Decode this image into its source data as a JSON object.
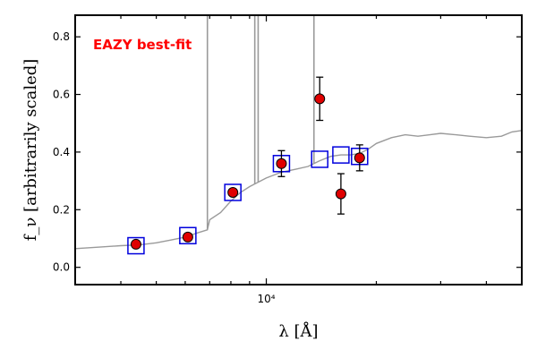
{
  "chart_data": {
    "type": "scatter",
    "annotation": "EAZY best-fit",
    "xlabel": "λ [Å]",
    "ylabel": "f_ν [arbitrarily scaled]",
    "xscale": "log",
    "xlim": [
      3000,
      50000
    ],
    "ylim": [
      -0.06,
      0.875
    ],
    "yticks": [
      "0.0",
      "0.2",
      "0.4",
      "0.6",
      "0.8"
    ],
    "ytick_values": [
      0.0,
      0.2,
      0.4,
      0.6,
      0.8
    ],
    "xtick_major": [
      {
        "value": 10000,
        "label": "10⁴"
      }
    ],
    "grid": false,
    "colors": {
      "observed": "#e00000",
      "model_photometry": "#0000dd",
      "sed": "#9a9a9a",
      "annotation": "#ff0000"
    },
    "observed_points": [
      {
        "x": 4400,
        "y": 0.08,
        "err": 0.0
      },
      {
        "x": 6100,
        "y": 0.105,
        "err": 0.0
      },
      {
        "x": 8100,
        "y": 0.26,
        "err": 0.0
      },
      {
        "x": 11000,
        "y": 0.36,
        "err": 0.045
      },
      {
        "x": 14000,
        "y": 0.585,
        "err": 0.075
      },
      {
        "x": 16000,
        "y": 0.255,
        "err": 0.07
      },
      {
        "x": 18000,
        "y": 0.38,
        "err": 0.045
      }
    ],
    "model_photometry": [
      {
        "x": 4400,
        "y": 0.075
      },
      {
        "x": 6100,
        "y": 0.11
      },
      {
        "x": 8100,
        "y": 0.26
      },
      {
        "x": 11000,
        "y": 0.36
      },
      {
        "x": 14000,
        "y": 0.375
      },
      {
        "x": 16000,
        "y": 0.39
      },
      {
        "x": 18000,
        "y": 0.385
      }
    ],
    "sed_continuum": [
      [
        3000,
        0.065
      ],
      [
        3500,
        0.07
      ],
      [
        4000,
        0.075
      ],
      [
        4500,
        0.078
      ],
      [
        5000,
        0.085
      ],
      [
        5500,
        0.095
      ],
      [
        6000,
        0.105
      ],
      [
        6500,
        0.12
      ],
      [
        6900,
        0.13
      ],
      [
        7000,
        0.165
      ],
      [
        7500,
        0.19
      ],
      [
        8000,
        0.23
      ],
      [
        8500,
        0.26
      ],
      [
        9000,
        0.28
      ],
      [
        10000,
        0.31
      ],
      [
        11000,
        0.33
      ],
      [
        12000,
        0.34
      ],
      [
        13000,
        0.35
      ],
      [
        14000,
        0.37
      ],
      [
        15000,
        0.385
      ],
      [
        16000,
        0.39
      ],
      [
        17000,
        0.39
      ],
      [
        18000,
        0.395
      ],
      [
        19000,
        0.41
      ],
      [
        20000,
        0.43
      ],
      [
        22000,
        0.45
      ],
      [
        24000,
        0.46
      ],
      [
        26000,
        0.455
      ],
      [
        28000,
        0.46
      ],
      [
        30000,
        0.465
      ],
      [
        33000,
        0.46
      ],
      [
        36000,
        0.455
      ],
      [
        40000,
        0.45
      ],
      [
        44000,
        0.455
      ],
      [
        47000,
        0.47
      ],
      [
        50000,
        0.475
      ]
    ],
    "sed_emission_lines": [
      {
        "x": 6900,
        "peak": 0.9
      },
      {
        "x": 9300,
        "peak": 0.9
      },
      {
        "x": 9500,
        "peak": 0.9
      },
      {
        "x": 13500,
        "peak": 0.9
      }
    ]
  }
}
